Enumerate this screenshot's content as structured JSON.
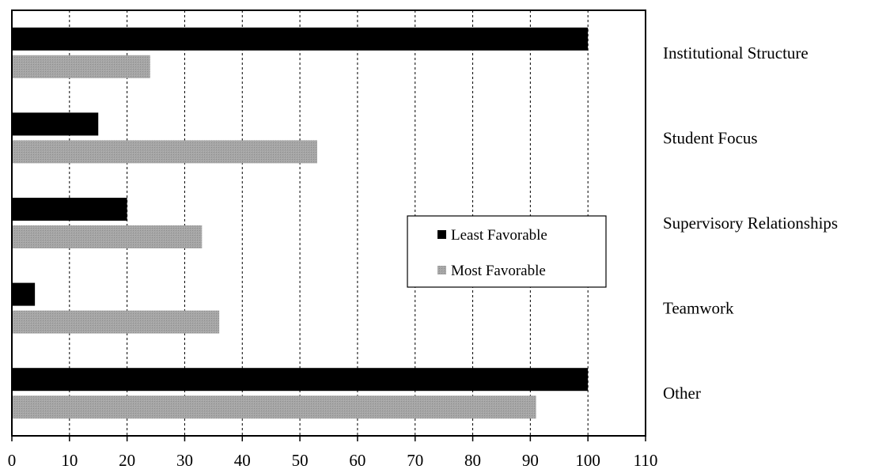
{
  "chart_data": {
    "type": "bar",
    "orientation": "horizontal",
    "categories": [
      "Institutional Structure",
      "Student Focus",
      "Supervisory Relationships",
      "Teamwork",
      "Other"
    ],
    "series": [
      {
        "name": "Least Favorable",
        "color": "#000000",
        "values": [
          100,
          15,
          20,
          4,
          100
        ]
      },
      {
        "name": "Most Favorable",
        "color": "#999999",
        "values": [
          24,
          53,
          33,
          36,
          91
        ]
      }
    ],
    "xlim": [
      0,
      110
    ],
    "xticks": [
      0,
      10,
      20,
      30,
      40,
      50,
      60,
      70,
      80,
      90,
      100,
      110
    ],
    "category_labels_position": "right",
    "grid": "vertical-dashed",
    "legend_position": "center-right"
  }
}
